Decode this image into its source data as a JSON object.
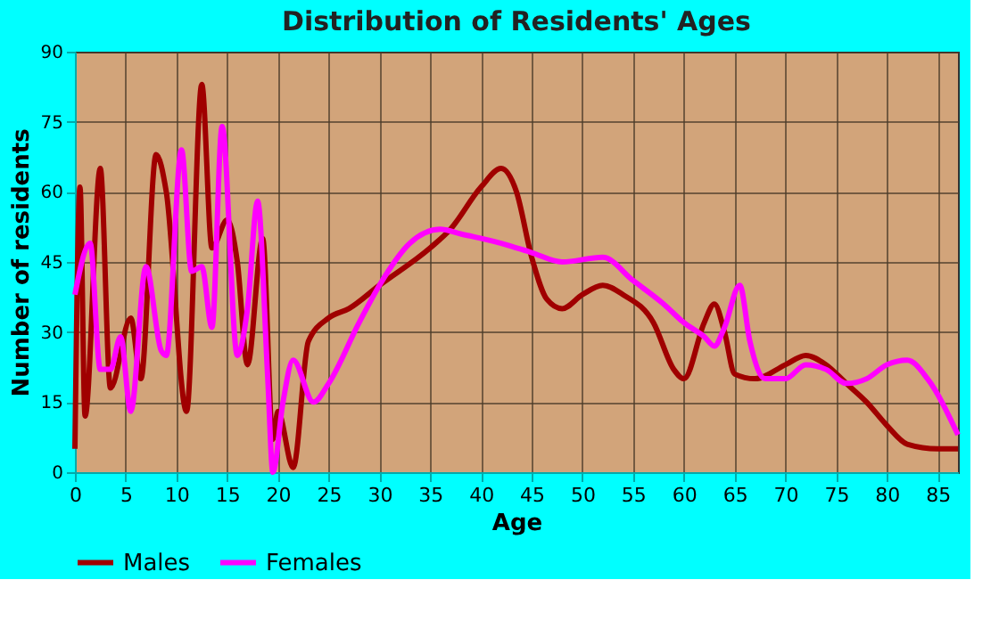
{
  "chart_data": {
    "type": "line",
    "title": "Distribution of Residents' Ages",
    "xlabel": "Age",
    "ylabel": "Number of residents",
    "xlim": [
      0,
      87
    ],
    "xticks": [
      0,
      5,
      10,
      15,
      20,
      25,
      30,
      35,
      40,
      45,
      50,
      55,
      60,
      65,
      70,
      75,
      80,
      85
    ],
    "ylim": [
      0,
      90
    ],
    "yticks": [
      0,
      15,
      30,
      45,
      60,
      75,
      90
    ],
    "grid": true,
    "legend": "bottom",
    "line_style": "solid",
    "series": [
      {
        "name": "Males",
        "color": "#a00000",
        "x": [
          0,
          0.5,
          1,
          2.5,
          3.5,
          5.5,
          6.5,
          8,
          9,
          11,
          12.5,
          13.5,
          15,
          16,
          17,
          18.5,
          19.5,
          20,
          21.5,
          23,
          25,
          27,
          30,
          35,
          37,
          40,
          42,
          43.5,
          45,
          46.5,
          48,
          50,
          52,
          54,
          57,
          59,
          60,
          62,
          63,
          64,
          65,
          67,
          70,
          72,
          74,
          76,
          78,
          80,
          82,
          85,
          87
        ],
        "values": [
          5,
          61,
          12,
          65,
          18,
          33,
          20,
          68,
          60,
          13,
          83,
          48,
          54,
          45,
          23,
          50,
          7,
          13,
          1,
          28,
          33,
          35,
          40,
          48,
          52,
          61,
          65,
          60,
          46,
          37,
          35,
          38,
          40,
          38,
          32,
          22,
          20,
          32,
          36,
          30,
          21,
          20,
          23,
          25,
          23,
          19,
          15,
          10,
          6,
          5,
          5
        ]
      },
      {
        "name": "Females",
        "color": "#ff00ff",
        "x": [
          0,
          1.5,
          2.5,
          3.5,
          4.5,
          5.5,
          7,
          8.5,
          9,
          10.5,
          11.5,
          12.5,
          13.5,
          14.5,
          16,
          17,
          18,
          19,
          19.5,
          20.5,
          21.5,
          23.5,
          25,
          28,
          30,
          33,
          36,
          38,
          42,
          45,
          48,
          52,
          55,
          58,
          60,
          62,
          63,
          64,
          65.5,
          66.5,
          68,
          70,
          72,
          74,
          76,
          78,
          80,
          82,
          84,
          87
        ],
        "values": [
          38,
          49,
          22,
          22,
          29,
          13,
          44,
          26,
          25,
          69,
          43,
          44,
          31,
          74,
          25,
          35,
          58,
          20,
          0,
          15,
          24,
          15,
          19,
          32,
          40,
          49,
          52,
          51,
          49,
          47,
          45,
          46,
          41,
          36,
          32,
          29,
          27,
          31,
          40,
          28,
          20,
          20,
          23,
          22,
          19,
          20,
          23,
          24,
          20,
          8
        ]
      }
    ]
  }
}
